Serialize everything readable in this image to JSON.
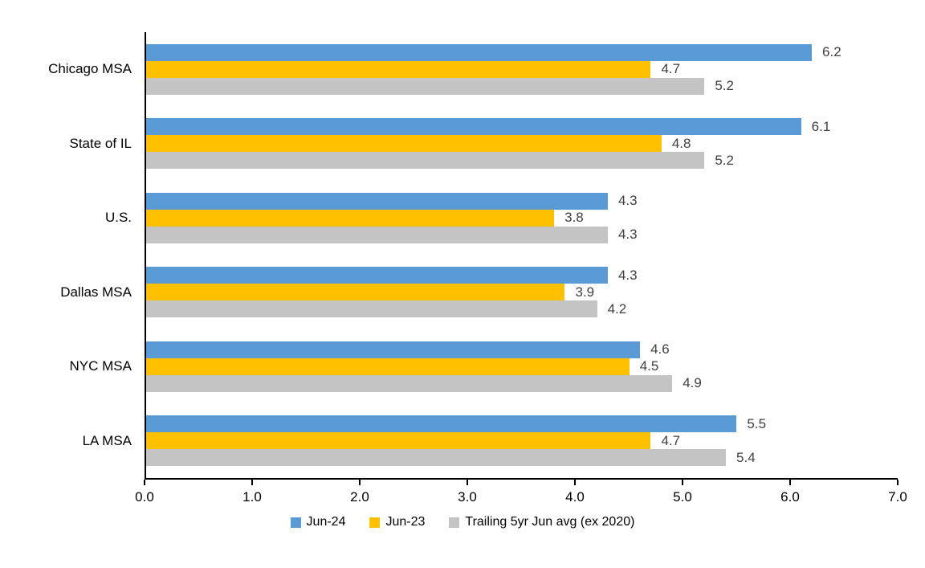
{
  "chart_data": {
    "type": "bar",
    "orientation": "horizontal",
    "title": "",
    "categories": [
      "Chicago MSA",
      "State of IL",
      "U.S.",
      "Dallas MSA",
      "NYC MSA",
      "LA MSA"
    ],
    "series": [
      {
        "name": "Jun-24",
        "color": "#5B9BD5",
        "values": [
          6.2,
          6.1,
          4.3,
          4.3,
          4.6,
          5.5
        ]
      },
      {
        "name": "Jun-23",
        "color": "#FFC000",
        "values": [
          4.7,
          4.8,
          3.8,
          3.9,
          4.5,
          4.7
        ]
      },
      {
        "name": "Trailing 5yr Jun avg (ex 2020)",
        "color": "#C4C4C4",
        "values": [
          5.2,
          5.2,
          4.3,
          4.2,
          4.9,
          5.4
        ]
      }
    ],
    "xlim": [
      0,
      7
    ],
    "x_ticks": [
      "0.0",
      "1.0",
      "2.0",
      "3.0",
      "4.0",
      "5.0",
      "6.0",
      "7.0"
    ],
    "data_labels": true,
    "data_label_color": "#404040",
    "axis_color": "#000000",
    "grid": false,
    "legend_position": "bottom"
  }
}
